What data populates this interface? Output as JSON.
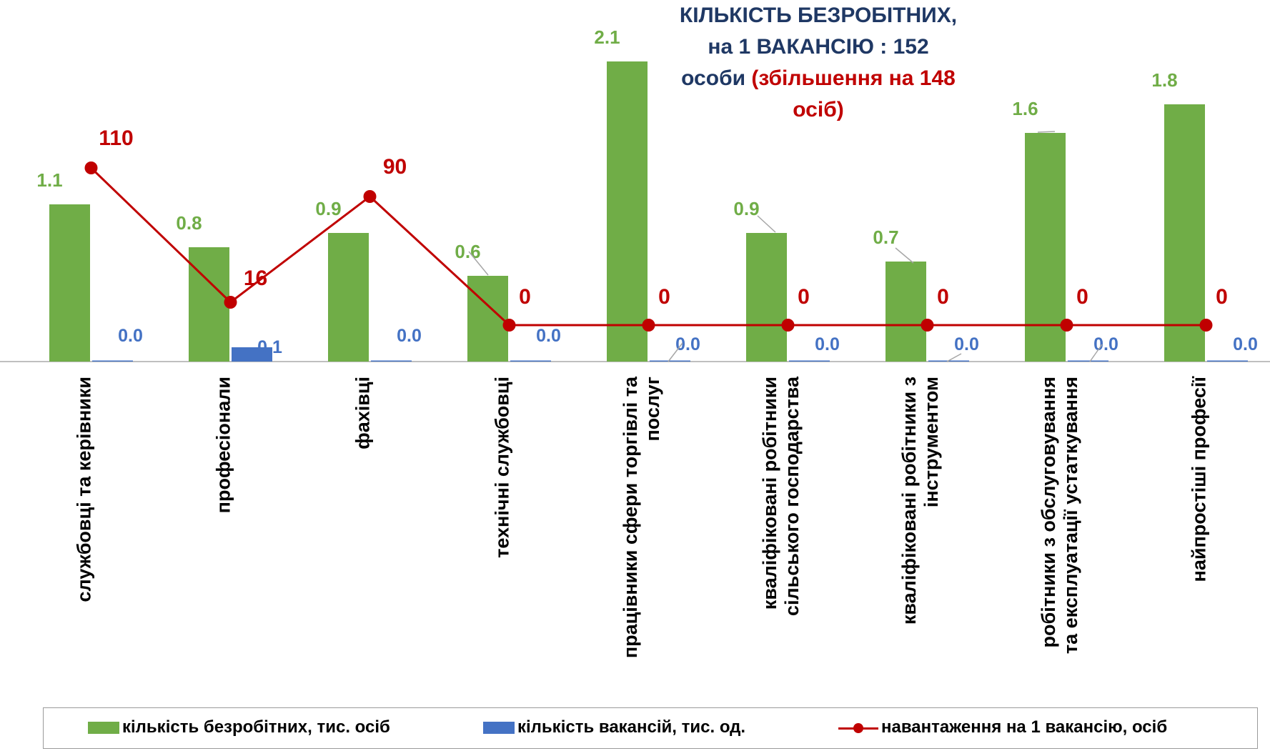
{
  "title": {
    "line1": "КІЛЬКІСТЬ  БЕЗРОБІТНИХ,",
    "line2": "на  1  ВАКАНСІЮ : 152",
    "line3_main": "особи ",
    "line3_red": "(збільшення  на 148",
    "line4_red": "осіб)"
  },
  "colors": {
    "unemployed": "#70ad47",
    "vacancies": "#4472c4",
    "load": "#c00000",
    "unemployed_label": "#70ad47",
    "vacancies_label": "#4472c4"
  },
  "legend": [
    {
      "label": "кількість безробітних, тис. осіб"
    },
    {
      "label": "кількість вакансій, тис. од."
    },
    {
      "label": "навантаження на 1 вакансію, осіб"
    }
  ],
  "chart_data": {
    "type": "bar",
    "categories": [
      [
        "службовці та керівники"
      ],
      [
        "професіонали"
      ],
      [
        "фахівці"
      ],
      [
        "технічні службовці"
      ],
      [
        "працівники сфери торгівлі та",
        "послуг"
      ],
      [
        "кваліфіковані робітники",
        "сільського господарства"
      ],
      [
        "кваліфіковані робітники з",
        "інструментом"
      ],
      [
        "робітники з обслуговування",
        "та експлуатації устаткування"
      ],
      [
        "найпростіші професії"
      ]
    ],
    "series": [
      {
        "name": "кількість безробітних, тис. осіб",
        "type": "bar",
        "values": [
          1.1,
          0.8,
          0.9,
          0.6,
          2.1,
          0.9,
          0.7,
          1.6,
          1.8
        ],
        "labels": [
          "1.1",
          "0.8",
          "0.9",
          "0.6",
          "2.1",
          "0.9",
          "0.7",
          "1.6",
          "1.8"
        ]
      },
      {
        "name": "кількість вакансій, тис. од.",
        "type": "bar",
        "values": [
          0.0,
          0.1,
          0.0,
          0.0,
          0.0,
          0.0,
          0.0,
          0.0,
          0.0
        ],
        "labels": [
          "0.0",
          "0.1",
          "0.0",
          "0.0",
          "0.0",
          "0.0",
          "0.0",
          "0.0",
          "0.0"
        ]
      },
      {
        "name": "навантаження на 1 вакансію, осіб",
        "type": "line",
        "values": [
          110,
          16,
          90,
          0,
          0,
          0,
          0,
          0,
          0
        ],
        "labels": [
          "110",
          "16",
          "90",
          "0",
          "0",
          "0",
          "0",
          "0",
          "0"
        ]
      }
    ],
    "axes": {
      "bar_ylim": [
        0,
        2.2
      ],
      "line_ylim": [
        -50,
        190
      ]
    },
    "grid": false,
    "legend_position": "bottom"
  }
}
